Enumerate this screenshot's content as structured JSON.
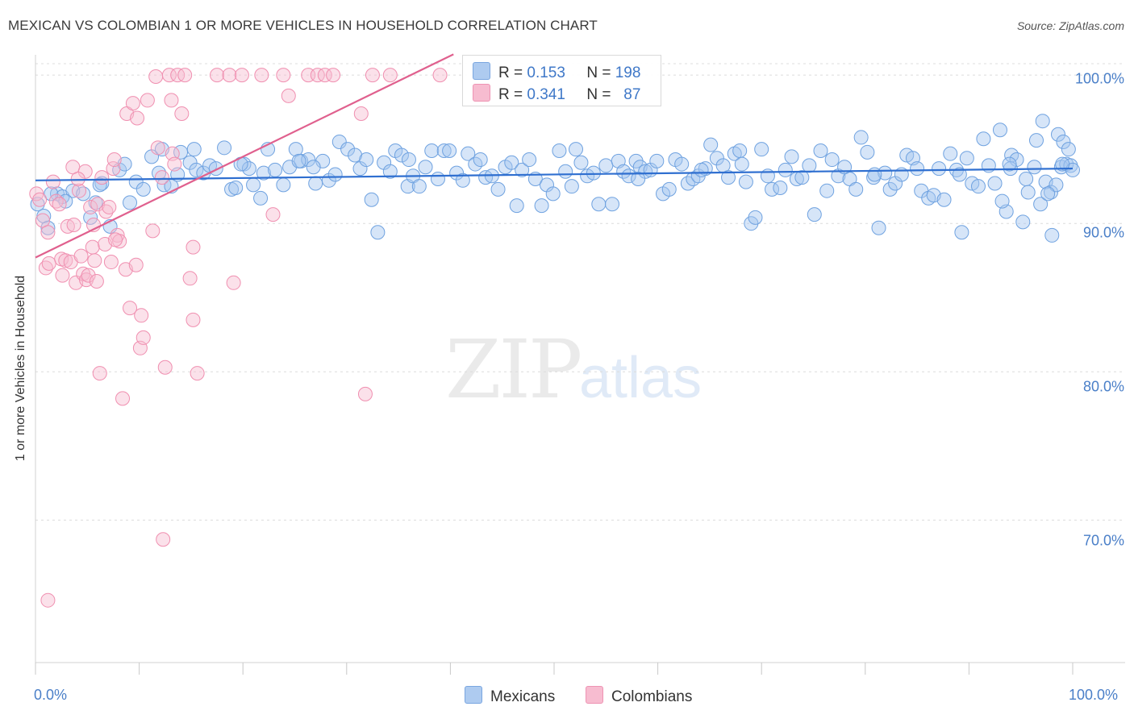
{
  "header": {
    "title": "MEXICAN VS COLOMBIAN 1 OR MORE VEHICLES IN HOUSEHOLD CORRELATION CHART",
    "source": "Source: ZipAtlas.com"
  },
  "watermark": {
    "zip": "ZIP",
    "atlas": "atlas"
  },
  "legend": {
    "rows": [
      {
        "r_label": "R =",
        "r_value": "0.153",
        "n_label": "N =",
        "n_value": "198",
        "color": "#aecbf0"
      },
      {
        "r_label": "R =",
        "r_value": "0.341",
        "n_label": "N =",
        "n_value": "87",
        "color": "#f7bcd0"
      }
    ]
  },
  "bottom_legend": {
    "mexicans": "Mexicans",
    "colombians": "Colombians"
  },
  "chart_data": {
    "type": "scatter",
    "title": "MEXICAN VS COLOMBIAN 1 OR MORE VEHICLES IN HOUSEHOLD CORRELATION CHART",
    "xlabel": "",
    "ylabel": "1 or more Vehicles in Household",
    "xlim": [
      0,
      100
    ],
    "ylim": [
      60.4,
      101.8
    ],
    "x_tick_labels": [
      "0.0%",
      "100.0%"
    ],
    "y_tick_labels": [
      "100.0%",
      "90.0%",
      "80.0%",
      "70.0%"
    ],
    "y_ticks": [
      100,
      90,
      80,
      70
    ],
    "grid": true,
    "colors": {
      "mexicans": "#6fa2e0",
      "mexicans_line": "#2f6fd0",
      "colombians": "#f08fb0",
      "colombians_line": "#e0608e"
    },
    "series": [
      {
        "name": "Mexicans",
        "r": 0.153,
        "n": 198,
        "trend": [
          [
            0,
            92.9
          ],
          [
            100,
            93.7
          ]
        ],
        "points": [
          [
            0.2,
            91.3
          ],
          [
            0.8,
            90.5
          ],
          [
            1.2,
            89.7
          ],
          [
            2.1,
            92.0
          ],
          [
            2.6,
            91.8
          ],
          [
            3.6,
            92.2
          ],
          [
            4.6,
            92.0
          ],
          [
            5.3,
            90.4
          ],
          [
            5.8,
            91.4
          ],
          [
            6.4,
            92.7
          ],
          [
            7.2,
            89.8
          ],
          [
            8.1,
            93.6
          ],
          [
            8.6,
            94.0
          ],
          [
            9.1,
            91.4
          ],
          [
            9.7,
            92.8
          ],
          [
            10.4,
            92.3
          ],
          [
            11.2,
            94.5
          ],
          [
            11.9,
            93.4
          ],
          [
            12.4,
            92.6
          ],
          [
            13.1,
            92.5
          ],
          [
            13.7,
            93.3
          ],
          [
            14.0,
            94.8
          ],
          [
            14.9,
            94.1
          ],
          [
            15.3,
            95.0
          ],
          [
            15.5,
            93.6
          ],
          [
            16.2,
            93.4
          ],
          [
            16.8,
            93.9
          ],
          [
            17.4,
            93.7
          ],
          [
            18.2,
            95.1
          ],
          [
            18.9,
            92.3
          ],
          [
            19.3,
            92.4
          ],
          [
            20.1,
            94.0
          ],
          [
            20.6,
            93.7
          ],
          [
            21.0,
            92.6
          ],
          [
            21.7,
            91.7
          ],
          [
            22.0,
            93.4
          ],
          [
            23.1,
            93.6
          ],
          [
            23.9,
            92.6
          ],
          [
            24.5,
            93.8
          ],
          [
            25.1,
            95.0
          ],
          [
            25.6,
            94.2
          ],
          [
            26.3,
            94.3
          ],
          [
            27.0,
            92.7
          ],
          [
            27.7,
            94.2
          ],
          [
            28.3,
            92.9
          ],
          [
            28.9,
            93.3
          ],
          [
            29.3,
            95.5
          ],
          [
            30.1,
            95.0
          ],
          [
            30.8,
            94.6
          ],
          [
            31.3,
            93.7
          ],
          [
            31.9,
            94.3
          ],
          [
            32.4,
            91.6
          ],
          [
            33.0,
            89.4
          ],
          [
            33.6,
            94.1
          ],
          [
            34.2,
            93.5
          ],
          [
            34.7,
            94.9
          ],
          [
            35.3,
            94.6
          ],
          [
            35.9,
            92.5
          ],
          [
            36.4,
            93.2
          ],
          [
            37.0,
            92.5
          ],
          [
            37.6,
            93.8
          ],
          [
            38.2,
            94.9
          ],
          [
            38.8,
            93.0
          ],
          [
            39.4,
            94.9
          ],
          [
            39.9,
            94.9
          ],
          [
            40.6,
            93.4
          ],
          [
            41.2,
            92.9
          ],
          [
            41.7,
            94.7
          ],
          [
            42.4,
            94.0
          ],
          [
            42.9,
            94.3
          ],
          [
            43.4,
            93.1
          ],
          [
            44.0,
            93.2
          ],
          [
            44.6,
            92.3
          ],
          [
            45.3,
            93.8
          ],
          [
            45.9,
            94.1
          ],
          [
            46.4,
            91.2
          ],
          [
            46.9,
            93.6
          ],
          [
            47.6,
            94.3
          ],
          [
            48.2,
            93.0
          ],
          [
            48.8,
            91.2
          ],
          [
            49.3,
            92.6
          ],
          [
            49.9,
            92.0
          ],
          [
            50.5,
            94.9
          ],
          [
            51.1,
            93.5
          ],
          [
            51.7,
            92.5
          ],
          [
            52.1,
            95.0
          ],
          [
            52.6,
            94.1
          ],
          [
            53.2,
            93.2
          ],
          [
            53.8,
            93.4
          ],
          [
            54.3,
            91.3
          ],
          [
            55.0,
            93.9
          ],
          [
            55.6,
            91.3
          ],
          [
            56.2,
            94.2
          ],
          [
            56.7,
            93.5
          ],
          [
            57.2,
            93.2
          ],
          [
            57.9,
            94.2
          ],
          [
            58.3,
            93.8
          ],
          [
            58.8,
            93.5
          ],
          [
            59.3,
            93.6
          ],
          [
            59.9,
            94.2
          ],
          [
            60.5,
            92.0
          ],
          [
            61.1,
            92.3
          ],
          [
            61.7,
            94.3
          ],
          [
            62.3,
            94.0
          ],
          [
            62.9,
            92.7
          ],
          [
            63.4,
            93.0
          ],
          [
            63.9,
            93.2
          ],
          [
            64.6,
            93.7
          ],
          [
            65.1,
            95.3
          ],
          [
            65.7,
            94.4
          ],
          [
            66.3,
            93.9
          ],
          [
            66.8,
            93.1
          ],
          [
            67.4,
            94.7
          ],
          [
            67.9,
            94.9
          ],
          [
            68.5,
            92.8
          ],
          [
            69.0,
            90.0
          ],
          [
            69.4,
            90.4
          ],
          [
            70.0,
            95.0
          ],
          [
            70.6,
            93.2
          ],
          [
            71.0,
            92.3
          ],
          [
            71.8,
            92.4
          ],
          [
            72.3,
            93.6
          ],
          [
            72.9,
            94.5
          ],
          [
            73.4,
            93.0
          ],
          [
            73.9,
            93.1
          ],
          [
            74.6,
            93.9
          ],
          [
            75.1,
            90.6
          ],
          [
            75.7,
            94.9
          ],
          [
            76.3,
            92.2
          ],
          [
            76.8,
            94.3
          ],
          [
            77.4,
            93.2
          ],
          [
            78.0,
            93.8
          ],
          [
            78.5,
            93.0
          ],
          [
            79.1,
            92.3
          ],
          [
            79.6,
            95.8
          ],
          [
            80.2,
            94.8
          ],
          [
            80.8,
            93.1
          ],
          [
            81.3,
            89.7
          ],
          [
            81.9,
            93.4
          ],
          [
            82.4,
            92.3
          ],
          [
            82.9,
            92.7
          ],
          [
            83.5,
            93.3
          ],
          [
            84.0,
            94.6
          ],
          [
            84.6,
            94.4
          ],
          [
            85.0,
            93.7
          ],
          [
            85.4,
            92.2
          ],
          [
            86.1,
            91.7
          ],
          [
            86.6,
            91.9
          ],
          [
            87.1,
            93.7
          ],
          [
            87.6,
            91.6
          ],
          [
            88.2,
            94.7
          ],
          [
            88.8,
            93.6
          ],
          [
            89.3,
            89.4
          ],
          [
            89.8,
            94.4
          ],
          [
            90.3,
            92.7
          ],
          [
            90.9,
            92.5
          ],
          [
            91.4,
            95.7
          ],
          [
            91.9,
            93.9
          ],
          [
            92.5,
            92.7
          ],
          [
            93.0,
            96.3
          ],
          [
            93.6,
            90.8
          ],
          [
            94.1,
            94.6
          ],
          [
            94.6,
            94.3
          ],
          [
            95.2,
            90.1
          ],
          [
            95.7,
            92.1
          ],
          [
            96.3,
            93.8
          ],
          [
            96.9,
            91.3
          ],
          [
            97.4,
            92.8
          ],
          [
            97.9,
            92.1
          ],
          [
            98.4,
            92.6
          ],
          [
            98.9,
            93.8
          ],
          [
            99.4,
            94.0
          ],
          [
            99.8,
            93.9
          ],
          [
            93.2,
            91.5
          ],
          [
            94.0,
            93.7
          ],
          [
            95.5,
            93.0
          ],
          [
            96.5,
            95.6
          ],
          [
            97.1,
            96.9
          ],
          [
            97.6,
            92.0
          ],
          [
            98.0,
            89.2
          ],
          [
            98.6,
            96.0
          ],
          [
            99.1,
            95.5
          ],
          [
            99.6,
            95.0
          ],
          [
            100.0,
            93.6
          ],
          [
            99.0,
            94.0
          ],
          [
            93.9,
            94.0
          ],
          [
            89.1,
            93.3
          ],
          [
            80.9,
            93.3
          ],
          [
            68.1,
            94.0
          ],
          [
            64.2,
            93.6
          ],
          [
            58.1,
            93.0
          ],
          [
            36.0,
            94.3
          ],
          [
            22.4,
            95.0
          ],
          [
            19.8,
            94.0
          ],
          [
            12.2,
            95.0
          ],
          [
            6.2,
            92.6
          ],
          [
            2.9,
            91.5
          ],
          [
            1.5,
            92.0
          ],
          [
            25.4,
            94.2
          ],
          [
            26.8,
            93.8
          ]
        ]
      },
      {
        "name": "Colombians",
        "r": 0.341,
        "n": 87,
        "trend": [
          [
            0,
            87.7
          ],
          [
            40.3,
            101.4
          ]
        ],
        "points": [
          [
            0.1,
            92.0
          ],
          [
            0.4,
            91.6
          ],
          [
            0.7,
            90.2
          ],
          [
            1.0,
            87.0
          ],
          [
            1.2,
            89.4
          ],
          [
            1.3,
            87.3
          ],
          [
            1.7,
            92.8
          ],
          [
            2.0,
            91.5
          ],
          [
            2.3,
            91.3
          ],
          [
            2.5,
            87.6
          ],
          [
            2.6,
            86.5
          ],
          [
            2.9,
            87.5
          ],
          [
            3.1,
            89.8
          ],
          [
            3.4,
            87.4
          ],
          [
            3.6,
            93.8
          ],
          [
            3.7,
            89.9
          ],
          [
            3.9,
            86.0
          ],
          [
            4.2,
            92.2
          ],
          [
            4.4,
            87.8
          ],
          [
            4.6,
            86.6
          ],
          [
            4.8,
            93.5
          ],
          [
            4.9,
            86.2
          ],
          [
            5.1,
            86.5
          ],
          [
            5.3,
            91.1
          ],
          [
            5.5,
            88.4
          ],
          [
            5.6,
            89.9
          ],
          [
            5.7,
            87.5
          ],
          [
            5.9,
            86.1
          ],
          [
            6.0,
            91.3
          ],
          [
            6.2,
            79.9
          ],
          [
            6.4,
            93.1
          ],
          [
            6.7,
            88.6
          ],
          [
            6.8,
            90.8
          ],
          [
            7.1,
            91.1
          ],
          [
            7.3,
            87.4
          ],
          [
            7.5,
            93.7
          ],
          [
            7.6,
            94.3
          ],
          [
            7.9,
            89.2
          ],
          [
            8.1,
            88.8
          ],
          [
            8.4,
            78.2
          ],
          [
            8.7,
            86.9
          ],
          [
            8.8,
            97.4
          ],
          [
            9.1,
            84.3
          ],
          [
            9.4,
            98.1
          ],
          [
            9.7,
            87.2
          ],
          [
            9.8,
            97.1
          ],
          [
            10.1,
            81.6
          ],
          [
            10.2,
            83.8
          ],
          [
            10.4,
            82.3
          ],
          [
            10.8,
            98.3
          ],
          [
            11.3,
            89.5
          ],
          [
            11.6,
            99.9
          ],
          [
            11.8,
            95.1
          ],
          [
            12.2,
            93.1
          ],
          [
            12.5,
            80.3
          ],
          [
            12.9,
            100.0
          ],
          [
            13.1,
            98.3
          ],
          [
            13.2,
            94.7
          ],
          [
            13.7,
            100.0
          ],
          [
            14.1,
            97.4
          ],
          [
            14.4,
            100.0
          ],
          [
            14.9,
            86.3
          ],
          [
            15.2,
            83.5
          ],
          [
            15.6,
            79.9
          ],
          [
            17.5,
            100.0
          ],
          [
            18.7,
            100.0
          ],
          [
            19.1,
            86.0
          ],
          [
            19.9,
            100.0
          ],
          [
            21.8,
            100.0
          ],
          [
            22.9,
            90.6
          ],
          [
            23.9,
            100.0
          ],
          [
            24.4,
            98.6
          ],
          [
            26.3,
            100.0
          ],
          [
            27.2,
            100.0
          ],
          [
            27.9,
            100.0
          ],
          [
            28.7,
            100.0
          ],
          [
            31.4,
            97.4
          ],
          [
            31.8,
            78.5
          ],
          [
            32.5,
            100.0
          ],
          [
            34.2,
            100.0
          ],
          [
            39.0,
            100.0
          ],
          [
            12.3,
            68.7
          ],
          [
            1.2,
            64.6
          ],
          [
            15.2,
            88.4
          ],
          [
            13.4,
            94.0
          ],
          [
            7.7,
            88.9
          ],
          [
            4.1,
            93.0
          ]
        ]
      }
    ]
  }
}
